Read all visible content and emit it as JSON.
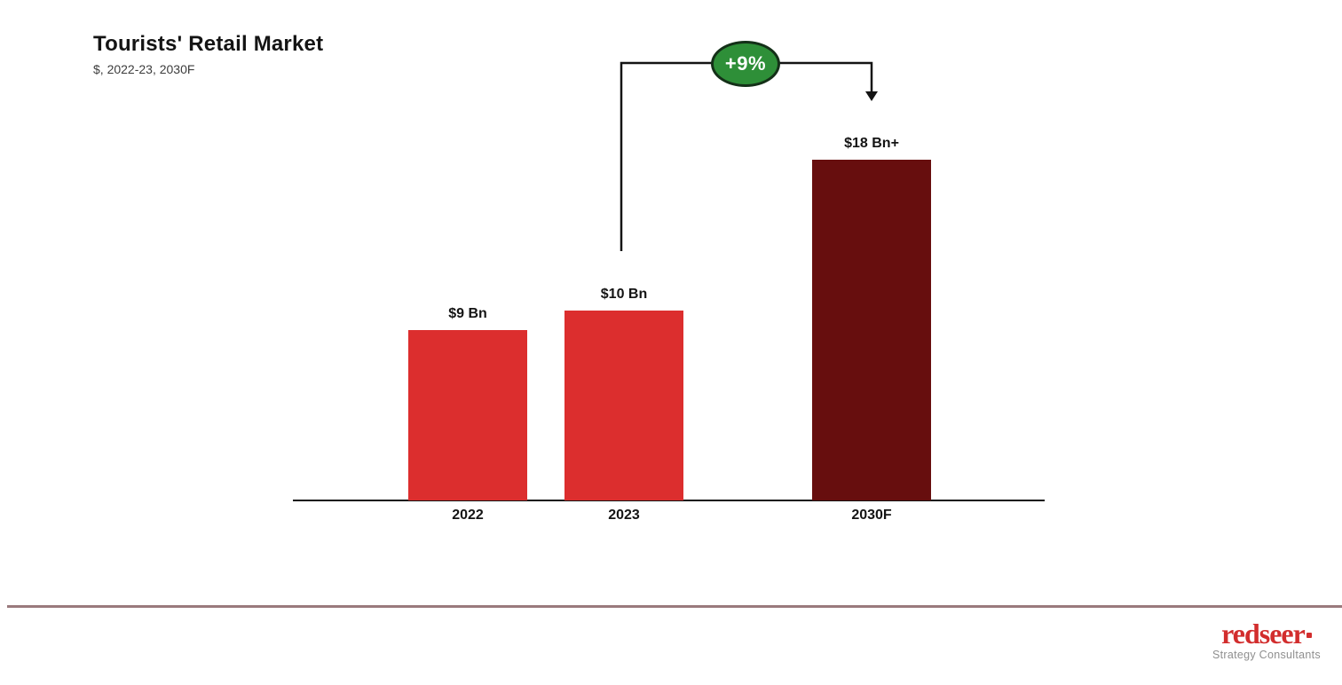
{
  "chart_data": {
    "type": "bar",
    "title": "Tourists' Retail Market",
    "subtitle": "$, 2022-23, 2030F",
    "categories": [
      "2022",
      "2023",
      "2030F"
    ],
    "values": [
      9,
      10,
      18
    ],
    "value_labels": [
      "$9 Bn",
      "$10 Bn",
      "$18 Bn+"
    ],
    "unit": "$ Bn",
    "ylim": [
      0,
      19
    ],
    "grid": false,
    "legend": "none",
    "bar_colors": [
      "#DC2E2E",
      "#DC2E2E",
      "#670E0E"
    ],
    "axis_color": "#141414",
    "annotation": {
      "label": "+9%",
      "meaning": "CAGR from 2023 to 2030F",
      "from_category": "2023",
      "to_category": "2030F",
      "badge_fill": "#2E8F38",
      "badge_border": "#143018",
      "badge_text_color": "#FFFFFF",
      "arrow_color": "#141414"
    }
  },
  "footer": {
    "logo_text": "redseer",
    "logo_tagline": "Strategy Consultants",
    "logo_color": "#D22D2D",
    "separator_color": "#9A7A7D"
  }
}
